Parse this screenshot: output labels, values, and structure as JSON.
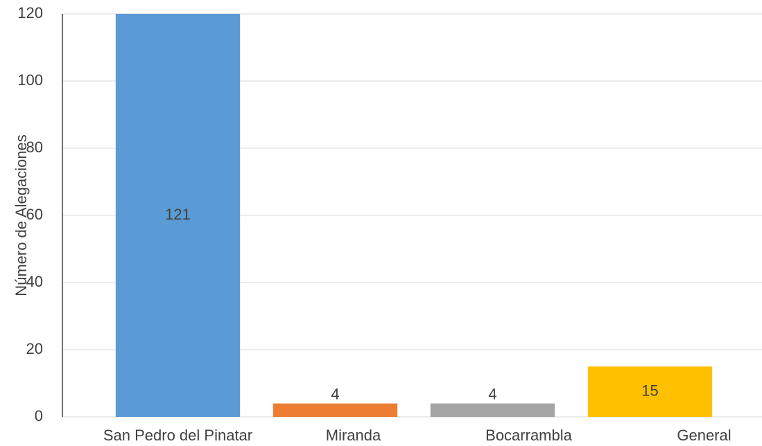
{
  "chart_data": {
    "type": "bar",
    "y_label": "Número de Alegaciones",
    "categories": [
      "San Pedro del Pinatar",
      "Miranda",
      "Bocarrambla",
      "General"
    ],
    "values": [
      121,
      4,
      4,
      15
    ],
    "colors": [
      "#5b9bd5",
      "#ed7d31",
      "#a5a5a5",
      "#ffc000"
    ],
    "ylim": [
      0,
      120
    ],
    "yticks": [
      0,
      20,
      40,
      60,
      80,
      100,
      120
    ],
    "grid": true
  }
}
